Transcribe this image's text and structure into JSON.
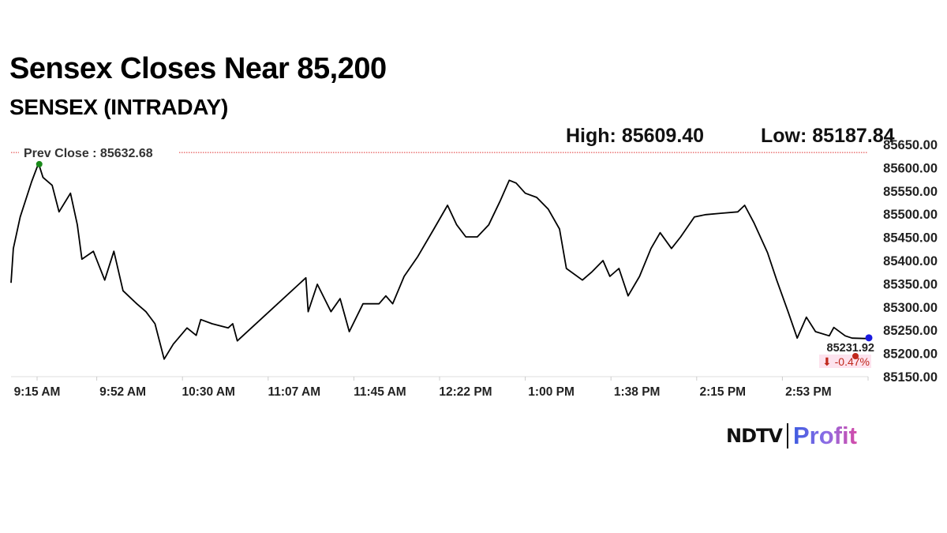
{
  "header": {
    "title": "Sensex Closes Near 85,200",
    "subtitle": "SENSEX (INTRADAY)",
    "high_label": "High: 85609.40",
    "low_label": "Low: 85187.84"
  },
  "chart_data": {
    "type": "line",
    "title": "Sensex Closes Near 85,200",
    "subtitle": "SENSEX (INTRADAY)",
    "xlabel": "",
    "ylabel": "",
    "ylim": [
      85150,
      85650
    ],
    "y_ticks": [
      "85650.00",
      "85600.00",
      "85550.00",
      "85500.00",
      "85450.00",
      "85400.00",
      "85350.00",
      "85300.00",
      "85250.00",
      "85200.00",
      "85150.00"
    ],
    "x_ticks": [
      "9:15 AM",
      "9:52 AM",
      "10:30 AM",
      "11:07 AM",
      "11:45 AM",
      "12:22 PM",
      "1:00 PM",
      "1:38 PM",
      "2:15 PM",
      "2:53 PM"
    ],
    "x_range": [
      "09:15",
      "15:30"
    ],
    "grid": false,
    "prev_close": {
      "label": "Prev Close : 85632.68",
      "value": 85632.68,
      "color": "#e03030"
    },
    "high": {
      "value": 85609.4,
      "time": "09:27",
      "color": "#1a8a1a"
    },
    "low": {
      "value": 85187.84,
      "time": "10:22"
    },
    "last": {
      "value_label": "85231.92",
      "change_label": "⬇ -0.47%",
      "value": 85231.92,
      "time": "15:30",
      "color": "#1a1ae0",
      "change_color": "#c0281c"
    },
    "line_color": "#000000",
    "series": [
      {
        "points": [
          [
            "09:15",
            85352
          ],
          [
            "09:16",
            85426
          ],
          [
            "09:19",
            85494
          ],
          [
            "09:24",
            85570
          ],
          [
            "09:27",
            85609.4
          ],
          [
            "09:29",
            85579
          ],
          [
            "09:33",
            85562
          ],
          [
            "09:36",
            85505
          ],
          [
            "09:41",
            85545
          ],
          [
            "09:44",
            85477
          ],
          [
            "09:46",
            85403
          ],
          [
            "09:51",
            85420
          ],
          [
            "09:56",
            85358
          ],
          [
            "10:00",
            85420
          ],
          [
            "10:04",
            85335
          ],
          [
            "10:10",
            85307
          ],
          [
            "10:14",
            85290
          ],
          [
            "10:18",
            85264
          ],
          [
            "10:22",
            85187.84
          ],
          [
            "10:26",
            85220
          ],
          [
            "10:32",
            85255
          ],
          [
            "10:36",
            85239
          ],
          [
            "10:38",
            85273
          ],
          [
            "10:43",
            85264
          ],
          [
            "10:50",
            85255
          ],
          [
            "10:52",
            85264
          ],
          [
            "10:54",
            85227
          ],
          [
            "11:24",
            85363
          ],
          [
            "11:25",
            85290
          ],
          [
            "11:29",
            85349
          ],
          [
            "11:35",
            85290
          ],
          [
            "11:39",
            85318
          ],
          [
            "11:43",
            85247
          ],
          [
            "11:49",
            85307
          ],
          [
            "11:56",
            85307
          ],
          [
            "11:59",
            85324
          ],
          [
            "12:02",
            85307
          ],
          [
            "12:07",
            85366
          ],
          [
            "12:13",
            85409
          ],
          [
            "12:20",
            85468
          ],
          [
            "12:26",
            85519
          ],
          [
            "12:30",
            85477
          ],
          [
            "12:34",
            85451
          ],
          [
            "12:39",
            85451
          ],
          [
            "12:44",
            85477
          ],
          [
            "12:49",
            85528
          ],
          [
            "12:53",
            85573
          ],
          [
            "12:56",
            85567
          ],
          [
            "13:00",
            85545
          ],
          [
            "13:05",
            85536
          ],
          [
            "13:10",
            85511
          ],
          [
            "13:15",
            85468
          ],
          [
            "13:18",
            85383
          ],
          [
            "13:25",
            85358
          ],
          [
            "13:29",
            85375
          ],
          [
            "13:34",
            85400
          ],
          [
            "13:37",
            85366
          ],
          [
            "13:41",
            85383
          ],
          [
            "13:45",
            85324
          ],
          [
            "13:50",
            85366
          ],
          [
            "13:55",
            85426
          ],
          [
            "13:59",
            85460
          ],
          [
            "14:04",
            85426
          ],
          [
            "14:08",
            85451
          ],
          [
            "14:14",
            85494
          ],
          [
            "14:19",
            85499
          ],
          [
            "14:26",
            85502
          ],
          [
            "14:33",
            85505
          ],
          [
            "14:36",
            85519
          ],
          [
            "14:40",
            85482
          ],
          [
            "14:46",
            85417
          ],
          [
            "14:50",
            85358
          ],
          [
            "14:55",
            85290
          ],
          [
            "14:59",
            85233
          ],
          [
            "15:03",
            85278
          ],
          [
            "15:07",
            85247
          ],
          [
            "15:13",
            85238
          ],
          [
            "15:15",
            85256
          ],
          [
            "15:20",
            85238
          ],
          [
            "15:23",
            85233
          ],
          [
            "15:30",
            85231.92
          ]
        ]
      }
    ]
  },
  "logo": {
    "left": "NDTV",
    "right": "Profit"
  }
}
